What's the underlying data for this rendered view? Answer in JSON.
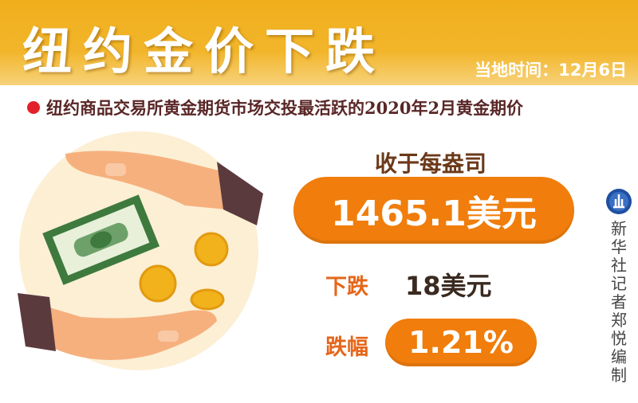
{
  "header": {
    "title": "纽约金价下跌",
    "date": "当地时间：12月6日"
  },
  "subtitle": "纽约商品交易所黄金期货市场交投最活跃的2020年2月黄金期价",
  "close": {
    "label": "收于每盎司",
    "value": "1465.1美元"
  },
  "fall": {
    "label": "下跌",
    "value": "18美元"
  },
  "change": {
    "label": "跌幅",
    "value": "1.21%"
  },
  "credit": "新华社记者郑悦编制",
  "colors": {
    "header": "#f0ae1c",
    "accent": "#f07d0c",
    "bullet": "#e3202a",
    "circle": "#fcefd4"
  }
}
